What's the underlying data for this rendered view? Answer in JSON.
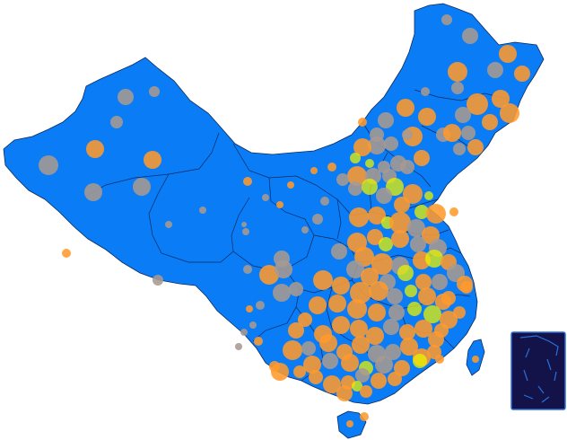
{
  "map": {
    "background": "#ffffff",
    "land_color": "#0a7cf6",
    "border_color": "#0a2a5e",
    "inset_fill": "#13134a",
    "inset_border": "#2a6fd6",
    "marker_colors": {
      "high": "#ff9a2e",
      "low": "#a79a92",
      "alt": "#e8f200"
    }
  },
  "marker_levels": [
    "high",
    "low",
    "alt"
  ]
}
